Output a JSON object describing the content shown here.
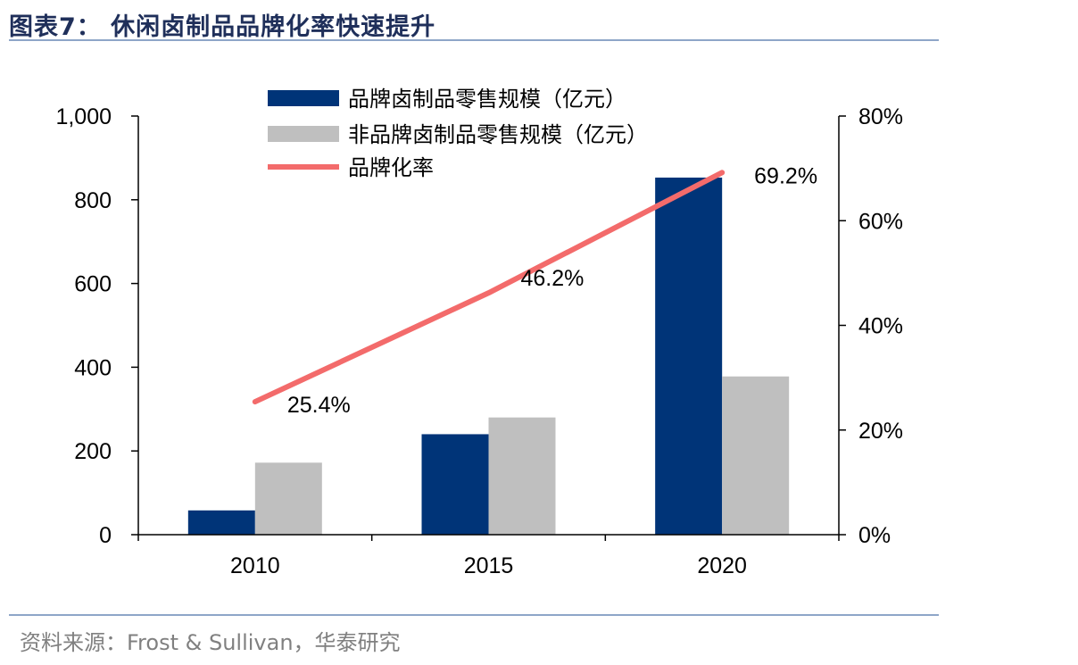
{
  "title": "图表7：  休闲卤制品品牌化率快速提升",
  "source": "资料来源：Frost & Sullivan，华泰研究",
  "colors": {
    "brand": "#003478",
    "nonbrand": "#bfbfbf",
    "rate": "#f36b6b"
  },
  "chart_data": {
    "type": "bar",
    "categories": [
      "2010",
      "2015",
      "2020"
    ],
    "series": [
      {
        "name": "品牌卤制品零售规模（亿元）",
        "type": "bar",
        "axis": "left",
        "values": [
          58,
          240,
          853
        ]
      },
      {
        "name": "非品牌卤制品零售规模（亿元）",
        "type": "bar",
        "axis": "left",
        "values": [
          172,
          280,
          378
        ]
      },
      {
        "name": "品牌化率",
        "type": "line",
        "axis": "right",
        "values": [
          25.4,
          46.2,
          69.2
        ],
        "labels": [
          "25.4%",
          "46.2%",
          "69.2%"
        ]
      }
    ],
    "ylim_left": [
      0,
      1000
    ],
    "yticks_left": [
      "0",
      "200",
      "400",
      "600",
      "800",
      "1,000"
    ],
    "ylim_right": [
      0,
      80
    ],
    "yticks_right": [
      "0%",
      "20%",
      "40%",
      "60%",
      "80%"
    ],
    "legend": "top-center",
    "grid": false
  }
}
